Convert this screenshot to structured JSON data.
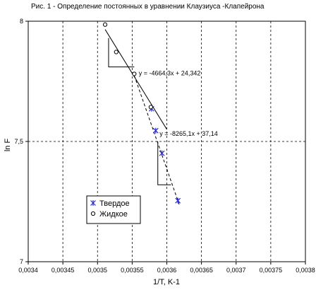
{
  "chart_data": {
    "type": "scatter",
    "title": "Рис. 1 - Определение постоянных в уравнении Клаузиуса -Клапейрона",
    "xlabel": "1/T, K-1",
    "ylabel": "ln F",
    "xlim": [
      0.0034,
      0.0038
    ],
    "ylim": [
      7,
      8
    ],
    "x_ticks": [
      0.0034,
      0.00345,
      0.0035,
      0.00355,
      0.0036,
      0.00365,
      0.0037,
      0.00375,
      0.0038
    ],
    "x_tick_labels": [
      "0,0034",
      "0,00345",
      "0,0035",
      "0,00355",
      "0,0036",
      "0,00365",
      "0,0037",
      "0,00375",
      "0,0038"
    ],
    "y_ticks": [
      7,
      7.5,
      8
    ],
    "y_tick_labels": [
      "7",
      "7,5",
      "8"
    ],
    "grid": true,
    "legend_position": "bottom-left",
    "series": [
      {
        "name": "Твердое",
        "marker": "asterisk",
        "color": "#2a2ad6",
        "x": [
          0.003578,
          0.003584,
          0.003593,
          0.003616
        ],
        "y": [
          7.636,
          7.545,
          7.451,
          7.254
        ]
      },
      {
        "name": "Жидкое",
        "marker": "circle",
        "color": "#000000",
        "x": [
          0.003511,
          0.003527,
          0.003553,
          0.003577
        ],
        "y": [
          7.986,
          7.872,
          7.781,
          7.643
        ]
      }
    ],
    "trendlines": [
      {
        "series": "Жидкое",
        "style": "solid",
        "slope": -4664.3,
        "intercept": 24.342,
        "x_range": [
          0.003511,
          0.0036
        ],
        "equation": "y = -4664,3x + 24,342"
      },
      {
        "series": "Твердое",
        "style": "dashed",
        "slope": -8265.1,
        "intercept": 37.14,
        "x_range": [
          0.003553,
          0.003618
        ],
        "equation": "y = -8265,1x + 37,14"
      }
    ],
    "slope_triangles": [
      {
        "x1": 0.003516,
        "x2": 0.003553,
        "y_top": 7.93,
        "y_bottom": 7.81
      },
      {
        "x1": 0.003587,
        "x2": 0.003606,
        "y_top": 7.5,
        "y_bottom": 7.32
      }
    ]
  }
}
